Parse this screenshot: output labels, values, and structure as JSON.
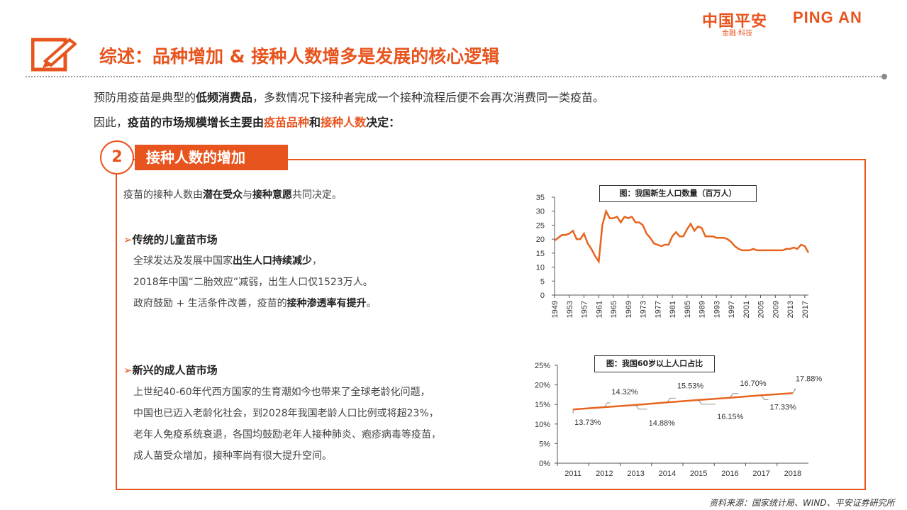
{
  "header": {
    "logo_cn": "中国平安",
    "logo_en": "PING AN",
    "logo_sub": "金融·科技",
    "title": "综述：品种增加 & 接种人数增多是发展的核心逻辑"
  },
  "intro": {
    "line1_a": "预防用疫苗是典型的",
    "line1_b": "低频消费品",
    "line1_c": "，多数情况下接种者完成一个接种流程后便不会再次消费同一类疫苗。",
    "line2_a": "因此，",
    "line2_b": "疫苗的市场规模增长主要由",
    "line2_c": "疫苗品种",
    "line2_d": "和",
    "line2_e": "接种人数",
    "line2_f": "决定："
  },
  "section": {
    "number": "2",
    "tab_label": "接种人数的增加",
    "desc_a": "疫苗的接种人数由",
    "desc_b": "潜在受众",
    "desc_c": "与",
    "desc_d": "接种意愿",
    "desc_e": "共同决定。",
    "h1_arrow": "➢",
    "h1": "传统的儿童苗市场",
    "p1_a": "全球发达及发展中国家",
    "p1_b": "出生人口持续减少",
    "p1_c": "，",
    "p2": "2018年中国“二胎效应”减弱，出生人口仅1523万人。",
    "p3_a": "政府鼓励 + 生活条件改善，疫苗的",
    "p3_b": "接种渗透率有提升",
    "p3_c": "。",
    "h2_arrow": "➢",
    "h2": "新兴的成人苗市场",
    "q1": "上世纪40-60年代西方国家的生育潮如今也带来了全球老龄化问题，",
    "q2": "中国也已迈入老龄化社会，到2028年我国老龄人口比例或将超23%，",
    "q3": "老年人免疫系统衰退，各国均鼓励老年人接种肺炎、疱疹病毒等疫苗，",
    "q4": "成人苗受众增加，接种率尚有很大提升空间。"
  },
  "source": "资料来源：国家统计局、WIND、平安证券研究所",
  "colors": {
    "accent": "#e8541e",
    "line": "#e8641e"
  },
  "chart_data": [
    {
      "type": "line",
      "title": "图：我国新生人口数量（百万人）",
      "ylim": [
        0,
        35
      ],
      "yticks": [
        "0",
        "5",
        "10",
        "15",
        "20",
        "25",
        "30",
        "35"
      ],
      "xticks": [
        "1949",
        "1953",
        "1957",
        "1961",
        "1965",
        "1969",
        "1973",
        "1977",
        "1981",
        "1985",
        "1989",
        "1993",
        "1997",
        "2001",
        "2005",
        "2009",
        "2013",
        "2017"
      ],
      "x": [
        1949,
        1950,
        1951,
        1952,
        1953,
        1954,
        1955,
        1956,
        1957,
        1958,
        1959,
        1960,
        1961,
        1962,
        1963,
        1964,
        1965,
        1966,
        1967,
        1968,
        1969,
        1970,
        1971,
        1972,
        1973,
        1974,
        1975,
        1976,
        1977,
        1978,
        1979,
        1980,
        1981,
        1982,
        1983,
        1984,
        1985,
        1986,
        1987,
        1988,
        1989,
        1990,
        1991,
        1992,
        1993,
        1994,
        1995,
        1996,
        1997,
        1998,
        1999,
        2000,
        2001,
        2002,
        2003,
        2004,
        2005,
        2006,
        2007,
        2008,
        2009,
        2010,
        2011,
        2012,
        2013,
        2014,
        2015,
        2016,
        2017,
        2018
      ],
      "values": [
        19.5,
        20.5,
        21.5,
        21.5,
        22,
        23,
        20,
        20,
        22,
        18.5,
        16.5,
        14,
        12,
        25,
        30,
        27.5,
        27.5,
        28,
        26,
        28,
        27.5,
        28,
        26,
        26,
        25,
        22,
        20.5,
        18.5,
        18,
        17.5,
        18,
        18,
        21,
        22.5,
        21,
        21,
        23.5,
        25.5,
        23,
        24.5,
        24,
        21,
        21,
        21,
        20.5,
        20.5,
        20.5,
        20,
        19,
        17.5,
        16.5,
        16,
        16,
        16,
        16.5,
        16,
        16,
        16,
        16,
        16,
        16,
        16,
        16,
        16.5,
        16.5,
        17,
        16.5,
        18,
        17.5,
        15.2
      ]
    },
    {
      "type": "line",
      "title": "图：我国60岁以上人口占比",
      "ylim": [
        0,
        25
      ],
      "yticks": [
        "0%",
        "5%",
        "10%",
        "15%",
        "20%",
        "25%"
      ],
      "categories": [
        "2011",
        "2012",
        "2013",
        "2014",
        "2015",
        "2016",
        "2017",
        "2018"
      ],
      "values": [
        13.73,
        14.32,
        14.88,
        15.53,
        16.15,
        16.7,
        17.33,
        17.88
      ],
      "data_labels": [
        "13.73%",
        "14.32%",
        "14.88%",
        "15.53%",
        "16.15%",
        "16.70%",
        "17.33%",
        "17.88%"
      ]
    }
  ]
}
